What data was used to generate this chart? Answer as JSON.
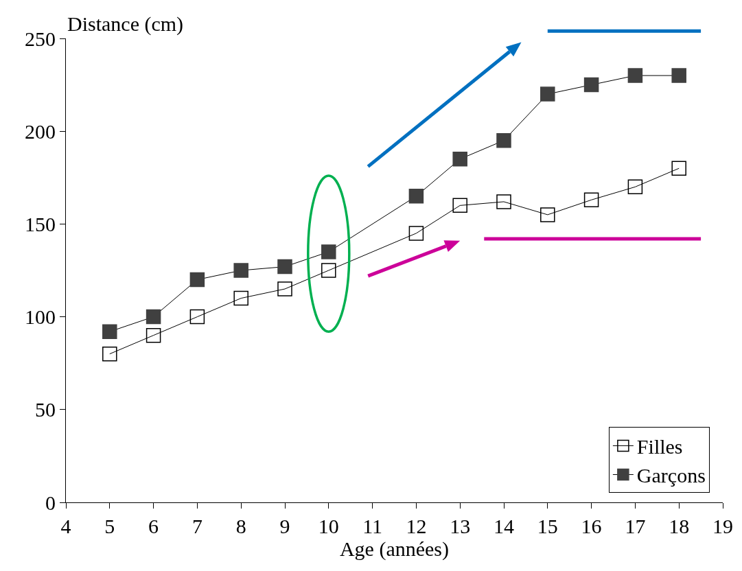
{
  "chart_data": {
    "type": "line",
    "xlabel": "Age (années)",
    "ylabel": "Distance (cm)",
    "x": [
      5,
      6,
      7,
      8,
      9,
      10,
      12,
      13,
      14,
      15,
      16,
      17,
      18
    ],
    "series": [
      {
        "name": "Filles",
        "color": "#000000",
        "marker": "square-open",
        "values": [
          80,
          90,
          100,
          110,
          115,
          125,
          145,
          160,
          162,
          155,
          163,
          170,
          180
        ]
      },
      {
        "name": "Garçons",
        "color": "#404040",
        "marker": "square",
        "values": [
          92,
          100,
          120,
          125,
          127,
          135,
          165,
          185,
          195,
          220,
          225,
          230,
          230
        ]
      }
    ],
    "xlim": [
      4,
      19
    ],
    "xticks": [
      4,
      5,
      6,
      7,
      8,
      9,
      10,
      11,
      12,
      13,
      14,
      15,
      16,
      17,
      18,
      19
    ],
    "ylim": [
      0,
      250
    ],
    "yticks": [
      0,
      50,
      100,
      150,
      200,
      250
    ],
    "grid": false,
    "legend": "bottom right",
    "line_style": "solid"
  }
}
